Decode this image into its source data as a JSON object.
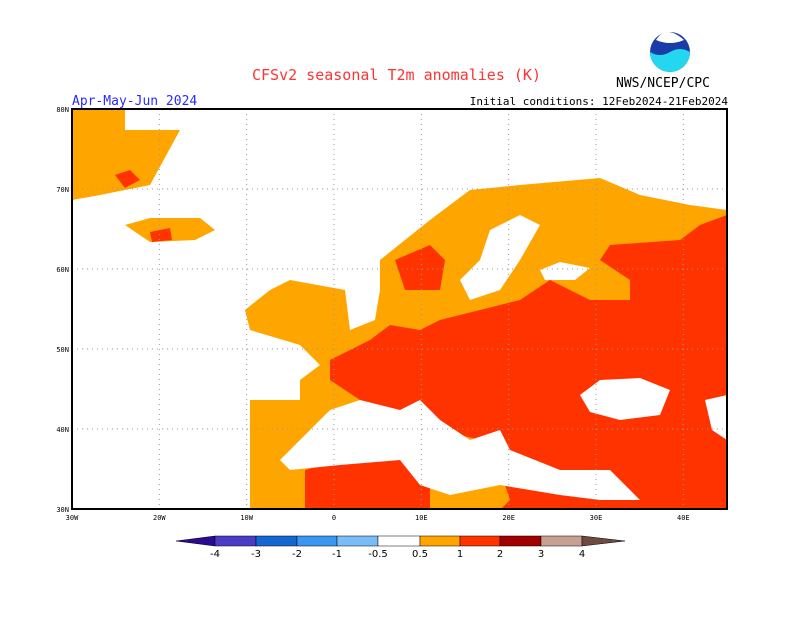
{
  "header": {
    "title": "CFSv2 seasonal T2m anomalies (K)",
    "season": "Apr-May-Jun 2024",
    "initial_conditions": "Initial conditions: 12Feb2024-21Feb2024",
    "agency": "NWS/NCEP/CPC",
    "logo_text": "NOAA"
  },
  "map": {
    "region": "Europe",
    "lon_range": [
      -30,
      45
    ],
    "lat_range": [
      30,
      80
    ],
    "lon_ticks": [
      "30W",
      "20W",
      "10W",
      "0",
      "10E",
      "20E",
      "30E",
      "40E"
    ],
    "lat_ticks": [
      "80N",
      "70N",
      "60N",
      "50N",
      "40N",
      "30N"
    ],
    "anomaly_summary": {
      "0.5_to_1": "Iberia, UK, France west, Scandinavia, Iceland, NW Russia, Morocco",
      "1_to_2": "Central & Eastern Europe, Balkans, Turkey, N Africa, Western Russia"
    }
  },
  "colorbar": {
    "labels": [
      "-4",
      "-3",
      "-2",
      "-1",
      "-0.5",
      "0.5",
      "1",
      "2",
      "3",
      "4"
    ],
    "colors": [
      "#2a0a90",
      "#4a3cc4",
      "#1466d0",
      "#3a96f0",
      "#7abcf8",
      "#ffffff",
      "#ffa500",
      "#ff3300",
      "#a00000",
      "#c8a092",
      "#6e4a40"
    ]
  }
}
